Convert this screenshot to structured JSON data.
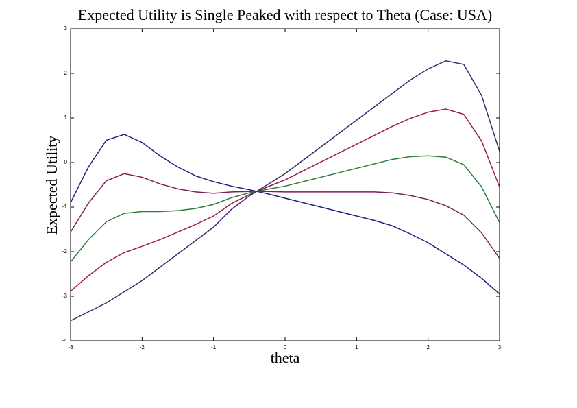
{
  "chart_data": {
    "type": "line",
    "title": "Expected Utility is Single Peaked with respect to Theta (Case: USA)",
    "xlabel": "theta",
    "ylabel": "Expected Utility",
    "x": [
      -3,
      -2.75,
      -2.5,
      -2.25,
      -2,
      -1.75,
      -1.5,
      -1.25,
      -1,
      -0.75,
      -0.5,
      -0.25,
      0,
      0.25,
      0.5,
      0.75,
      1,
      1.25,
      1.5,
      1.75,
      2,
      2.25,
      2.5,
      2.75,
      3
    ],
    "series": [
      {
        "color": "#1a237e",
        "values": [
          -0.9,
          -0.1,
          0.5,
          0.63,
          0.45,
          0.15,
          -0.1,
          -0.3,
          -0.43,
          -0.53,
          -0.61,
          -0.7,
          -0.8,
          -0.9,
          -1.0,
          -1.1,
          -1.2,
          -1.3,
          -1.42,
          -1.6,
          -1.8,
          -2.05,
          -2.3,
          -2.6,
          -2.95
        ]
      },
      {
        "color": "#7a1f5c",
        "values": [
          -1.56,
          -0.91,
          -0.41,
          -0.25,
          -0.33,
          -0.48,
          -0.59,
          -0.66,
          -0.69,
          -0.66,
          -0.65,
          -0.65,
          -0.66,
          -0.66,
          -0.66,
          -0.66,
          -0.66,
          -0.66,
          -0.68,
          -0.74,
          -0.83,
          -0.97,
          -1.18,
          -1.58,
          -2.15
        ]
      },
      {
        "color": "#2e7d32",
        "values": [
          -2.23,
          -1.73,
          -1.33,
          -1.14,
          -1.1,
          -1.1,
          -1.08,
          -1.03,
          -0.94,
          -0.79,
          -0.68,
          -0.6,
          -0.53,
          -0.43,
          -0.33,
          -0.23,
          -0.13,
          -0.03,
          0.07,
          0.13,
          0.15,
          0.12,
          -0.05,
          -0.55,
          -1.35
        ]
      },
      {
        "color": "#9c1b47",
        "values": [
          -2.89,
          -2.54,
          -2.24,
          -2.02,
          -1.88,
          -1.73,
          -1.56,
          -1.39,
          -1.2,
          -0.92,
          -0.72,
          -0.55,
          -0.39,
          -0.19,
          0.01,
          0.21,
          0.41,
          0.61,
          0.81,
          0.99,
          1.13,
          1.2,
          1.08,
          0.48,
          -0.55
        ]
      },
      {
        "color": "#3a2a6a",
        "values": [
          -3.55,
          -3.35,
          -3.15,
          -2.9,
          -2.65,
          -2.35,
          -2.05,
          -1.75,
          -1.45,
          -1.05,
          -0.75,
          -0.5,
          -0.25,
          0.05,
          0.35,
          0.65,
          0.95,
          1.25,
          1.55,
          1.85,
          2.1,
          2.28,
          2.2,
          1.5,
          0.25
        ]
      }
    ],
    "xlim": [
      -3,
      3
    ],
    "xticks": [
      -3,
      -2,
      -1,
      0,
      1,
      2,
      3
    ],
    "ylim": [
      -4,
      3
    ],
    "yticks": [
      -4,
      -3,
      -2,
      -1,
      0,
      1,
      2,
      3
    ]
  }
}
